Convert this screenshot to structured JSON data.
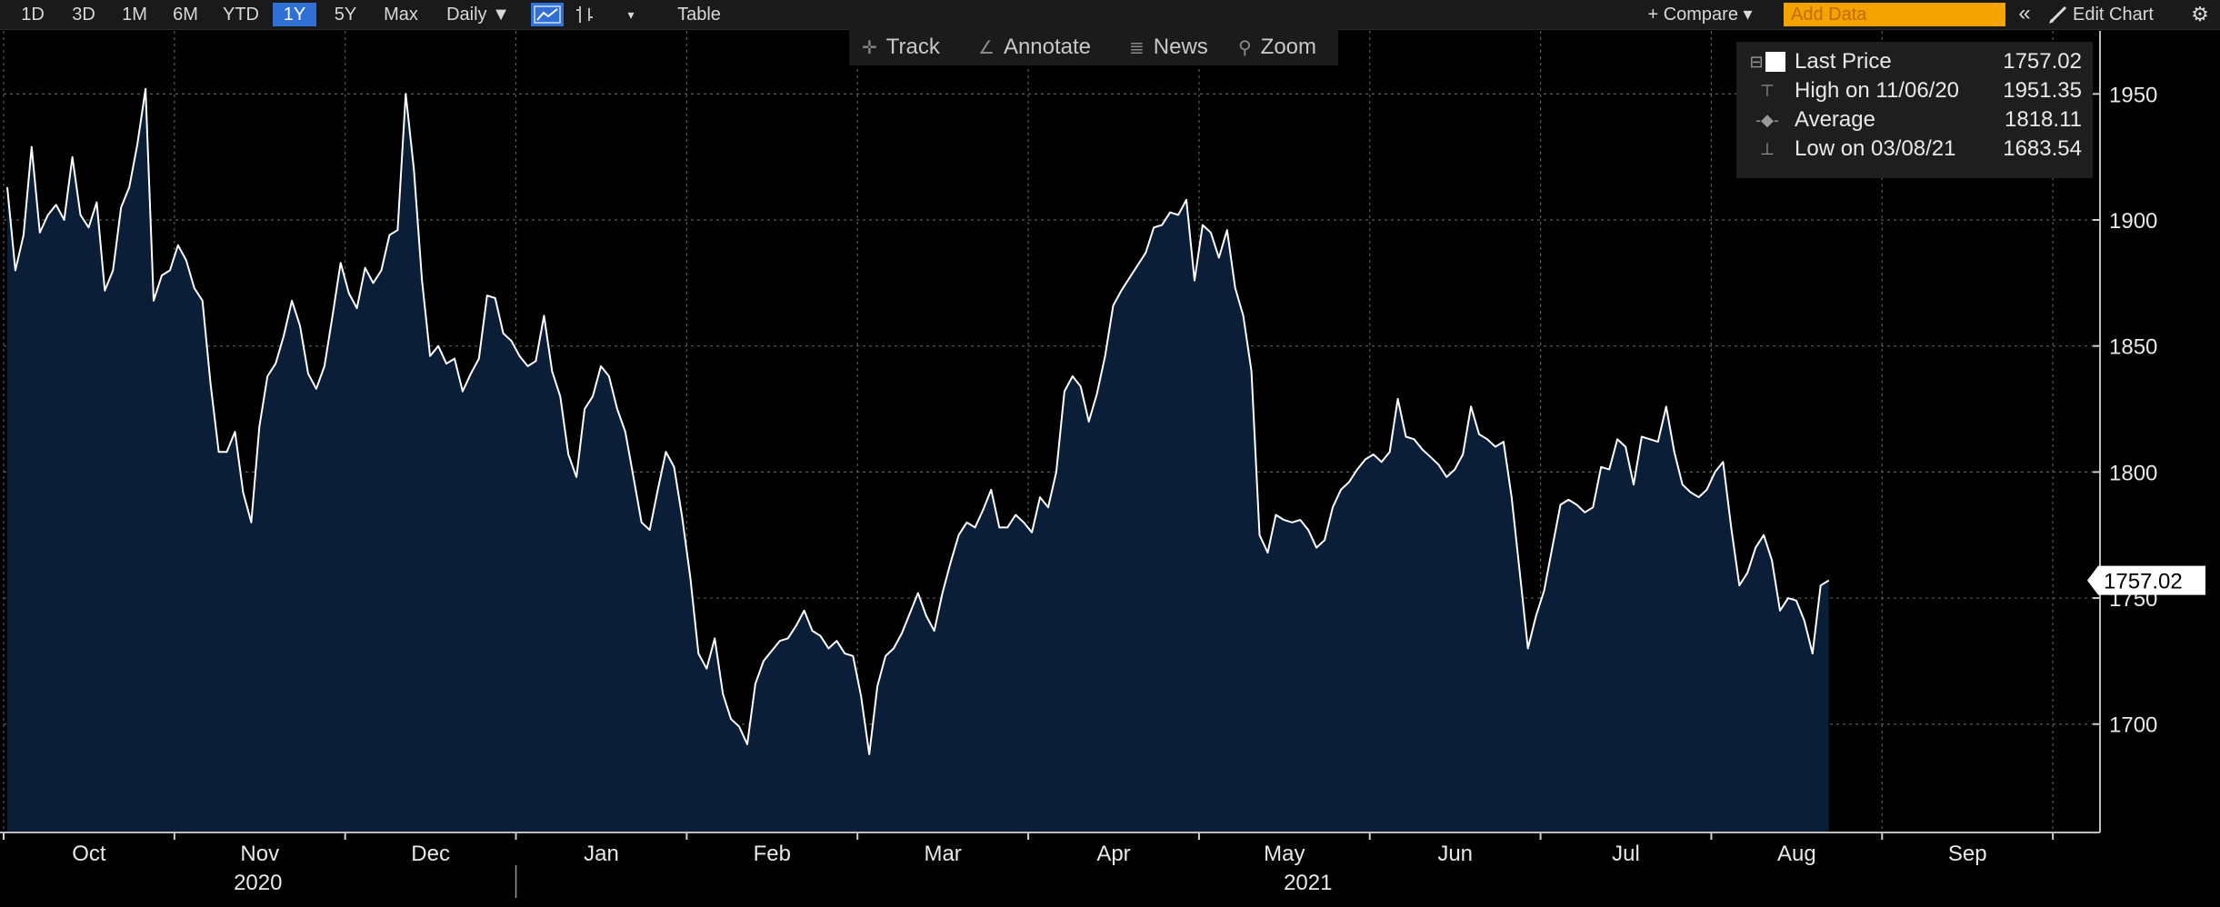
{
  "toolbar": {
    "ranges": [
      "1D",
      "3D",
      "1M",
      "6M",
      "YTD",
      "1Y",
      "5Y",
      "Max"
    ],
    "active_range": "1Y",
    "frequency": "Daily ▼",
    "table_label": "Table",
    "compare_label": "+ Compare ▾",
    "add_data_placeholder": "Add Data",
    "collapse_label": "«",
    "edit_chart_label": "Edit Chart"
  },
  "chart_tools": {
    "track": "Track",
    "annotate": "Annotate",
    "news": "News",
    "zoom": "Zoom"
  },
  "legend": {
    "rows": [
      {
        "label": "Last Price",
        "value": "1757.02"
      },
      {
        "label": "High on 11/06/20",
        "value": "1951.35"
      },
      {
        "label": "Average",
        "value": "1818.11"
      },
      {
        "label": "Low on 03/08/21",
        "value": "1683.54"
      }
    ]
  },
  "colors": {
    "background": "#000000",
    "area_fill": "#0b1e38",
    "line": "#ffffff",
    "grid": "#5a5a5a",
    "axis_text": "#e8e8e8",
    "active_button": "#2f6fd6",
    "add_data": "#f5a300"
  },
  "chart_data": {
    "type": "area",
    "title": "",
    "xlabel": "",
    "ylabel": "",
    "ylim": [
      1657,
      1975
    ],
    "y_ticks": [
      1700,
      1750,
      1800,
      1850,
      1900,
      1950
    ],
    "grid": true,
    "last_price_label": "1757.02",
    "x_month_labels": [
      "Oct",
      "Nov",
      "Dec",
      "Jan",
      "Feb",
      "Mar",
      "Apr",
      "May",
      "Jun",
      "Jul",
      "Aug",
      "Sep"
    ],
    "year_labels": [
      "2020",
      "2021"
    ],
    "points_per_month": 21,
    "series": [
      {
        "name": "Last Price",
        "values": [
          1913,
          1880,
          1894,
          1929,
          1895,
          1902,
          1906,
          1900,
          1925,
          1902,
          1897,
          1907,
          1872,
          1880,
          1905,
          1913,
          1930,
          1952,
          1868,
          1878,
          1880,
          1890,
          1884,
          1873,
          1868,
          1835,
          1808,
          1808,
          1816,
          1792,
          1780,
          1818,
          1838,
          1843,
          1854,
          1868,
          1858,
          1839,
          1833,
          1842,
          1862,
          1883,
          1871,
          1865,
          1881,
          1875,
          1880,
          1894,
          1896,
          1950,
          1920,
          1876,
          1846,
          1850,
          1843,
          1845,
          1832,
          1839,
          1845,
          1870,
          1869,
          1855,
          1852,
          1846,
          1842,
          1844,
          1862,
          1840,
          1830,
          1807,
          1798,
          1825,
          1830,
          1842,
          1838,
          1825,
          1816,
          1798,
          1780,
          1777,
          1793,
          1808,
          1802,
          1782,
          1758,
          1728,
          1722,
          1734,
          1712,
          1702,
          1699,
          1692,
          1716,
          1725,
          1729,
          1733,
          1734,
          1739,
          1745,
          1737,
          1735,
          1730,
          1733,
          1728,
          1727,
          1711,
          1688,
          1715,
          1727,
          1730,
          1736,
          1744,
          1752,
          1743,
          1737,
          1752,
          1764,
          1775,
          1780,
          1778,
          1785,
          1793,
          1778,
          1778,
          1783,
          1780,
          1776,
          1790,
          1786,
          1800,
          1832,
          1838,
          1834,
          1820,
          1831,
          1846,
          1866,
          1872,
          1877,
          1882,
          1887,
          1897,
          1898,
          1903,
          1902,
          1908,
          1876,
          1898,
          1895,
          1885,
          1896,
          1873,
          1862,
          1840,
          1775,
          1768,
          1783,
          1781,
          1780,
          1781,
          1777,
          1770,
          1773,
          1786,
          1793,
          1796,
          1801,
          1805,
          1807,
          1804,
          1808,
          1829,
          1814,
          1813,
          1809,
          1806,
          1803,
          1798,
          1801,
          1807,
          1826,
          1815,
          1813,
          1810,
          1812,
          1790,
          1760,
          1730,
          1743,
          1753,
          1770,
          1787,
          1789,
          1787,
          1784,
          1786,
          1802,
          1801,
          1813,
          1810,
          1795,
          1814,
          1813,
          1812,
          1826,
          1808,
          1795,
          1792,
          1790,
          1793,
          1800,
          1804,
          1778,
          1755,
          1760,
          1770,
          1775,
          1765,
          1745,
          1750,
          1749,
          1741,
          1728,
          1755,
          1757
        ]
      }
    ]
  }
}
